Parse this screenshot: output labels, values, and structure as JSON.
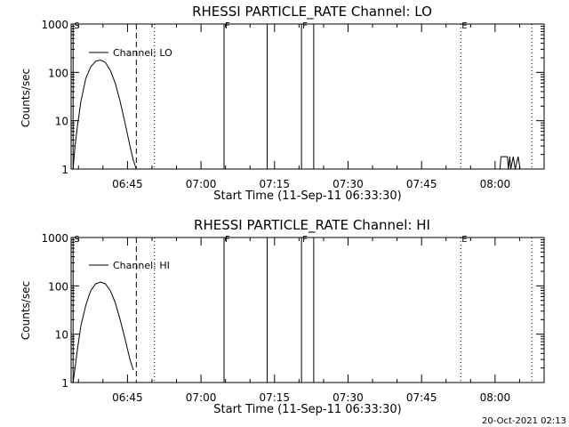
{
  "footer": {
    "timestamp": "20-Oct-2021 02:13"
  },
  "chart_data": [
    {
      "type": "line",
      "title": "RHESSI PARTICLE_RATE Channel: LO",
      "xlabel": "Start Time (11-Sep-11 06:33:30)",
      "ylabel": "Counts/sec",
      "yscale": "log",
      "ylim": [
        1,
        1000
      ],
      "xlim_minutes": [
        0,
        96.5
      ],
      "x_tick_labels": [
        "06:45",
        "07:00",
        "07:15",
        "07:30",
        "07:45",
        "08:00"
      ],
      "y_tick_labels": [
        "1",
        "10",
        "100",
        "1000"
      ],
      "legend": {
        "label": "Channel: LO",
        "position": "top-left"
      },
      "series": [
        {
          "name": "Channel: LO",
          "x": [
            0.4,
            0.8,
            1.3,
            2.0,
            3.0,
            4.0,
            5.0,
            6.0,
            7.0,
            8.0,
            9.0,
            10.0,
            11.0,
            12.0,
            12.7,
            13.3
          ],
          "y": [
            1.0,
            3.0,
            8.0,
            25.0,
            75.0,
            130.0,
            170.0,
            180.0,
            160.0,
            110.0,
            60.0,
            25.0,
            9.0,
            3.0,
            1.5,
            1.0
          ]
        },
        {
          "name": "tail",
          "x": [
            87.5,
            87.7,
            89.0,
            89.2,
            89.5,
            89.7,
            90.2,
            90.6,
            91.2,
            91.6
          ],
          "y": [
            1.0,
            1.8,
            1.8,
            1.0,
            1.8,
            1.0,
            1.8,
            1.0,
            1.8,
            1.0
          ]
        }
      ],
      "annotations": [
        {
          "x": 0.4,
          "label": "S",
          "style": "solid"
        },
        {
          "x": 13.3,
          "label": "",
          "style": "dashed"
        },
        {
          "x": 17.0,
          "label": "",
          "style": "dotted"
        },
        {
          "x": 31.2,
          "label": "F",
          "style": "solid"
        },
        {
          "x": 40.0,
          "label": "",
          "style": "solid"
        },
        {
          "x": 47.0,
          "label": "F",
          "style": "solid"
        },
        {
          "x": 49.5,
          "label": "",
          "style": "solid"
        },
        {
          "x": 79.5,
          "label": "E",
          "style": "dotted"
        },
        {
          "x": 94.0,
          "label": "",
          "style": "dotted"
        }
      ]
    },
    {
      "type": "line",
      "title": "RHESSI PARTICLE_RATE Channel: HI",
      "xlabel": "Start Time (11-Sep-11 06:33:30)",
      "ylabel": "Counts/sec",
      "yscale": "log",
      "ylim": [
        1,
        1000
      ],
      "xlim_minutes": [
        0,
        96.5
      ],
      "x_tick_labels": [
        "06:45",
        "07:00",
        "07:15",
        "07:30",
        "07:45",
        "08:00"
      ],
      "y_tick_labels": [
        "1",
        "10",
        "100",
        "1000"
      ],
      "legend": {
        "label": "Channel: HI",
        "position": "top-left"
      },
      "series": [
        {
          "name": "Channel: HI",
          "x": [
            0.4,
            0.8,
            1.3,
            2.0,
            3.0,
            4.0,
            5.0,
            6.0,
            7.0,
            8.0,
            9.0,
            10.0,
            11.0,
            12.0,
            12.7
          ],
          "y": [
            1.0,
            2.0,
            5.0,
            15.0,
            40.0,
            80.0,
            110.0,
            120.0,
            110.0,
            80.0,
            45.0,
            20.0,
            8.0,
            3.0,
            1.8
          ]
        }
      ],
      "annotations": [
        {
          "x": 0.4,
          "label": "S",
          "style": "solid"
        },
        {
          "x": 13.3,
          "label": "",
          "style": "dashed"
        },
        {
          "x": 17.0,
          "label": "",
          "style": "dotted"
        },
        {
          "x": 31.2,
          "label": "F",
          "style": "solid"
        },
        {
          "x": 40.0,
          "label": "",
          "style": "solid"
        },
        {
          "x": 47.0,
          "label": "F",
          "style": "solid"
        },
        {
          "x": 49.5,
          "label": "",
          "style": "solid"
        },
        {
          "x": 79.5,
          "label": "E",
          "style": "dotted"
        },
        {
          "x": 94.0,
          "label": "",
          "style": "dotted"
        }
      ]
    }
  ]
}
